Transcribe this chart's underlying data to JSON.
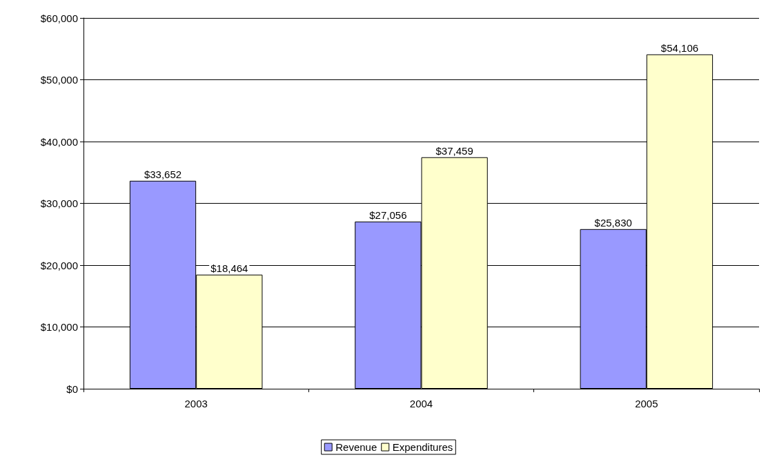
{
  "chart_data": {
    "type": "bar",
    "categories": [
      "2003",
      "2004",
      "2005"
    ],
    "series": [
      {
        "name": "Revenue",
        "color": "#9999ff",
        "values": [
          33652,
          27056,
          25830
        ],
        "value_labels": [
          "$33,652",
          "$27,056",
          "$25,830"
        ]
      },
      {
        "name": "Expenditures",
        "color": "#ffffcc",
        "values": [
          18464,
          37459,
          54106
        ],
        "value_labels": [
          "$18,464",
          "$37,459",
          "$54,106"
        ]
      }
    ],
    "ylim": [
      0,
      60000
    ],
    "yticks": [
      {
        "value": 0,
        "label": "$0"
      },
      {
        "value": 10000,
        "label": "$10,000"
      },
      {
        "value": 20000,
        "label": "$20,000"
      },
      {
        "value": 30000,
        "label": "$30,000"
      },
      {
        "value": 40000,
        "label": "$40,000"
      },
      {
        "value": 50000,
        "label": "$50,000"
      },
      {
        "value": 60000,
        "label": "$60,000"
      }
    ],
    "grid": "y",
    "legend": "bottom"
  }
}
